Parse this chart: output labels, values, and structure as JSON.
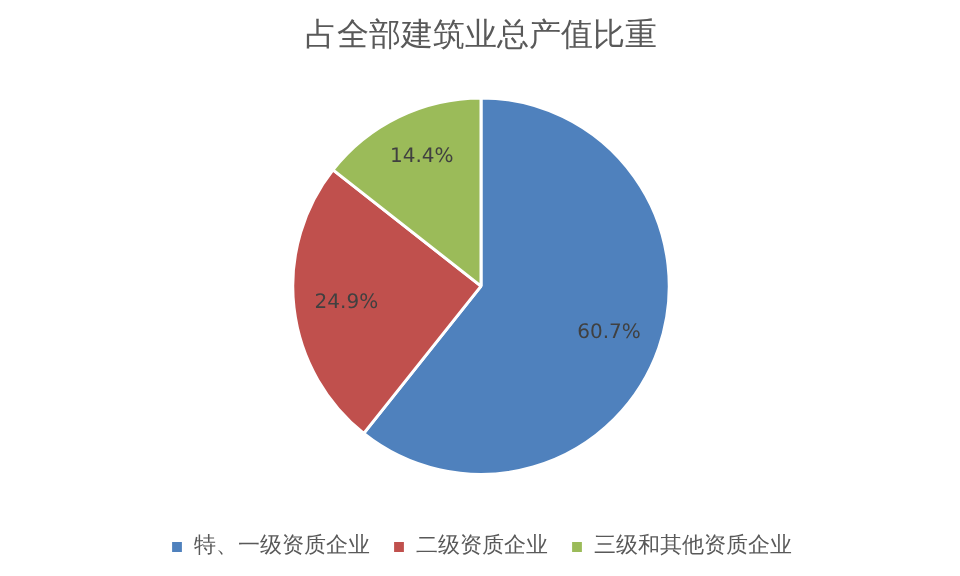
{
  "chart_data": {
    "type": "pie",
    "title": "占全部建筑业总产值比重",
    "categories": [
      "特、一级资质企业",
      "二级资质企业",
      "三级和其他资质企业"
    ],
    "values": [
      60.7,
      24.9,
      14.4
    ],
    "colors": [
      "#4f81bd",
      "#c0504d",
      "#9bbb59"
    ],
    "value_labels": [
      "60.7%",
      "24.9%",
      "14.4%"
    ],
    "legend": "bottom"
  }
}
